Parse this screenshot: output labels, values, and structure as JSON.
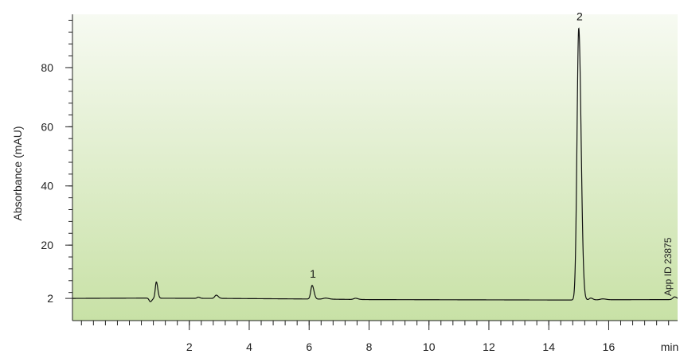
{
  "chart_data": {
    "type": "line",
    "title": "",
    "xlabel": "min",
    "ylabel": "Absorbance (mAU)",
    "xlim": [
      -1.9,
      18.3
    ],
    "ylim": [
      -5.5,
      98
    ],
    "x_ticks": [
      2,
      4,
      6,
      8,
      10,
      12,
      14,
      16
    ],
    "y_ticks": [
      2,
      20,
      40,
      60,
      80
    ],
    "x_minor_step": 0.4,
    "y_minor_step": 4,
    "baseline": [
      [
        -1.9,
        2.0
      ],
      [
        0.6,
        2.1
      ],
      [
        1.0,
        2.05
      ],
      [
        3.0,
        2.0
      ],
      [
        6.0,
        1.8
      ],
      [
        8.0,
        1.6
      ],
      [
        14.7,
        1.45
      ],
      [
        16.0,
        1.55
      ],
      [
        18.3,
        1.6
      ]
    ],
    "peaks": [
      {
        "label": "",
        "rt": 0.7,
        "height": -1.2,
        "width": 0.04
      },
      {
        "label": "",
        "rt": 0.9,
        "height": 5.5,
        "width": 0.035
      },
      {
        "label": "",
        "rt": 2.3,
        "height": 0.4,
        "width": 0.04
      },
      {
        "label": "",
        "rt": 2.9,
        "height": 1.1,
        "width": 0.05
      },
      {
        "label": "1",
        "rt": 6.1,
        "height": 4.6,
        "width": 0.045
      },
      {
        "label": "",
        "rt": 6.55,
        "height": 0.35,
        "width": 0.08
      },
      {
        "label": "",
        "rt": 7.55,
        "height": 0.4,
        "width": 0.06
      },
      {
        "label": "2",
        "rt": 15.0,
        "height": 91.8,
        "width": 0.058
      },
      {
        "label": "",
        "rt": 15.4,
        "height": 0.6,
        "width": 0.05
      },
      {
        "label": "",
        "rt": 15.8,
        "height": 0.3,
        "width": 0.08
      },
      {
        "label": "",
        "rt": 18.2,
        "height": 0.9,
        "width": 0.06
      }
    ],
    "annotation": "App ID 23875",
    "grid": false,
    "background": {
      "top": "#f7faf2",
      "bottom": "#c8e1a6"
    },
    "line_color": "#111111"
  }
}
